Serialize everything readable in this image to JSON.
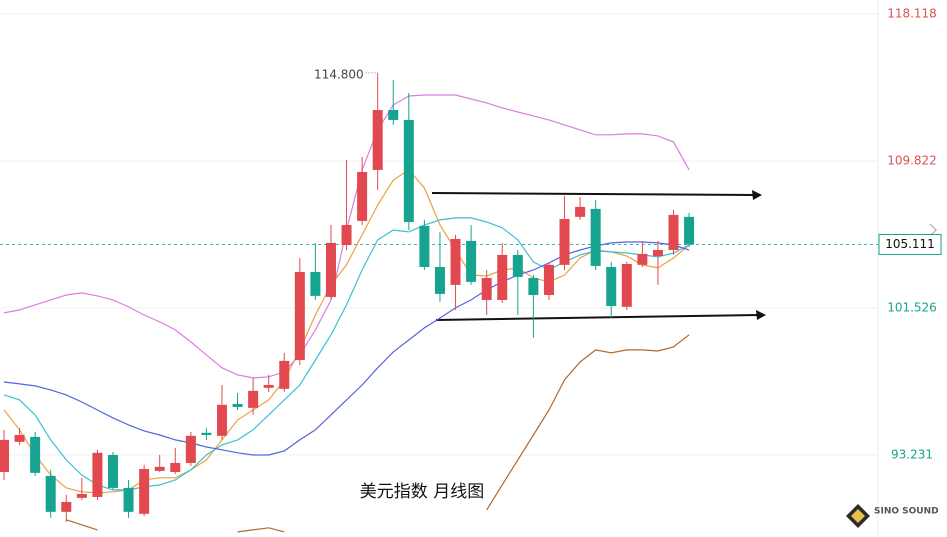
{
  "chart_data": {
    "type": "candlestick",
    "title": "美元指数 月线图",
    "annotation": "114.800",
    "annotation_value": 114.8,
    "annotation_index": 24,
    "ylim": [
      88.6,
      118.91
    ],
    "yticks": [
      118.118,
      109.822,
      101.526,
      93.231
    ],
    "last_price": 105.111,
    "grid": true,
    "up_color": "#e2484f",
    "down_color": "#16a38f",
    "open": [
      92.27,
      93.97,
      94.25,
      92.05,
      90.02,
      90.81,
      90.86,
      93.23,
      91.37,
      89.91,
      92.33,
      92.27,
      92.78,
      94.48,
      94.31,
      96.11,
      95.89,
      97.02,
      96.96,
      98.59,
      103.56,
      102.15,
      105.08,
      106.44,
      109.32,
      112.7,
      112.14,
      106.16,
      103.84,
      102.83,
      105.31,
      101.98,
      101.98,
      104.52,
      103.22,
      102.26,
      103.96,
      106.67,
      107.12,
      103.84,
      101.59,
      103.96,
      104.46,
      104.8,
      106.67
    ],
    "high": [
      94.65,
      94.76,
      94.53,
      92.39,
      90.98,
      91.94,
      93.52,
      93.4,
      91.82,
      92.67,
      93.23,
      93.63,
      94.53,
      94.76,
      97.18,
      96.73,
      97.58,
      97.75,
      98.99,
      104.35,
      105.2,
      106.21,
      109.88,
      110.05,
      114.8,
      114.4,
      113.66,
      106.5,
      105.82,
      105.65,
      106.21,
      103.67,
      105.2,
      104.8,
      103.39,
      104.07,
      107.85,
      107.79,
      107.62,
      104.13,
      104.13,
      105.31,
      105.31,
      107.06,
      106.89
    ],
    "low": [
      91.82,
      93.8,
      92.05,
      89.68,
      89.45,
      90.69,
      90.69,
      91.26,
      89.68,
      89.79,
      92.27,
      92.16,
      92.61,
      94.08,
      94.08,
      95.77,
      95.49,
      96.79,
      96.79,
      98.31,
      101.98,
      101.98,
      104.8,
      106.21,
      108.19,
      111.86,
      105.93,
      103.67,
      101.87,
      101.42,
      102.83,
      101.13,
      101.81,
      101.13,
      99.84,
      101.98,
      103.67,
      106.5,
      103.67,
      100.96,
      101.42,
      103.84,
      102.83,
      104.52,
      104.97
    ],
    "close": [
      94.08,
      94.36,
      92.22,
      90.02,
      90.58,
      91.03,
      93.35,
      91.37,
      90.02,
      92.44,
      92.56,
      92.78,
      94.31,
      94.36,
      96.06,
      95.94,
      96.85,
      97.18,
      98.54,
      103.56,
      102.21,
      105.2,
      106.21,
      109.2,
      112.7,
      112.14,
      106.38,
      103.84,
      102.32,
      105.42,
      103.0,
      103.22,
      104.52,
      103.28,
      102.26,
      103.96,
      106.55,
      107.23,
      103.9,
      101.64,
      104.01,
      104.58,
      104.8,
      106.78,
      105.111
    ],
    "lines": [
      {
        "color": "#f0a040",
        "values": [
          95.77,
          94.65,
          93.23,
          92.1,
          91.37,
          91.15,
          91.09,
          91.15,
          91.26,
          91.82,
          91.94,
          91.94,
          92.39,
          92.95,
          94.08,
          95.21,
          95.77,
          96.34,
          97.47,
          99.16,
          101.13,
          102.83,
          103.96,
          105.65,
          107.34,
          108.75,
          109.32,
          108.3,
          106.21,
          104.8,
          103.39,
          103.33,
          103.67,
          103.79,
          103.22,
          103.0,
          103.39,
          104.35,
          104.8,
          104.69,
          104.46,
          103.96,
          103.79,
          104.35,
          105.08
        ]
      },
      {
        "color": "#3cc0d2",
        "values": [
          96.62,
          96.34,
          95.49,
          94.08,
          92.95,
          92.1,
          91.54,
          91.26,
          91.26,
          91.43,
          91.54,
          91.82,
          92.39,
          93.23,
          93.8,
          94.08,
          94.65,
          95.49,
          96.34,
          97.18,
          98.59,
          100.01,
          101.7,
          103.67,
          105.37,
          105.93,
          105.82,
          106.21,
          106.5,
          106.61,
          106.61,
          106.38,
          106.05,
          105.37,
          104.13,
          103.67,
          104.13,
          104.52,
          104.75,
          104.69,
          104.63,
          104.52,
          104.41,
          104.63,
          105.08
        ]
      },
      {
        "color": "#5563e0",
        "values": [
          97.35,
          97.24,
          97.13,
          96.9,
          96.62,
          96.22,
          95.77,
          95.32,
          94.93,
          94.59,
          94.36,
          94.08,
          93.91,
          93.68,
          93.52,
          93.35,
          93.23,
          93.23,
          93.46,
          94.08,
          94.65,
          95.49,
          96.34,
          97.18,
          98.15,
          99.05,
          99.72,
          100.4,
          100.96,
          101.53,
          101.98,
          102.55,
          103.0,
          103.39,
          103.67,
          104.07,
          104.52,
          104.8,
          105.03,
          105.2,
          105.25,
          105.25,
          105.2,
          105.08,
          104.8
        ]
      },
      {
        "color": "#dc7ee0",
        "values": [
          101.25,
          101.42,
          101.7,
          101.98,
          102.26,
          102.38,
          102.21,
          101.98,
          101.59,
          101.13,
          100.74,
          100.29,
          99.61,
          98.88,
          98.15,
          97.75,
          97.58,
          97.64,
          97.92,
          98.88,
          100.29,
          101.98,
          105.93,
          109.32,
          111.58,
          112.99,
          113.49,
          113.55,
          113.55,
          113.55,
          113.32,
          113.1,
          112.82,
          112.59,
          112.37,
          112.14,
          111.86,
          111.58,
          111.3,
          111.3,
          111.35,
          111.35,
          111.24,
          110.9,
          109.32
        ]
      },
      {
        "color": "#b2692f",
        "values": [
          null,
          null,
          null,
          null,
          89.57,
          89.29,
          89.0,
          null,
          null,
          null,
          null,
          null,
          null,
          null,
          null,
          88.89,
          89.0,
          89.12,
          88.89,
          null,
          null,
          null,
          null,
          null,
          null,
          null,
          null,
          null,
          null,
          null,
          null,
          90.13,
          91.54,
          92.95,
          94.36,
          95.77,
          97.47,
          98.48,
          99.16,
          98.99,
          99.16,
          99.16,
          99.1,
          99.33,
          100.01
        ]
      }
    ]
  },
  "logo": "SINO SOUND"
}
